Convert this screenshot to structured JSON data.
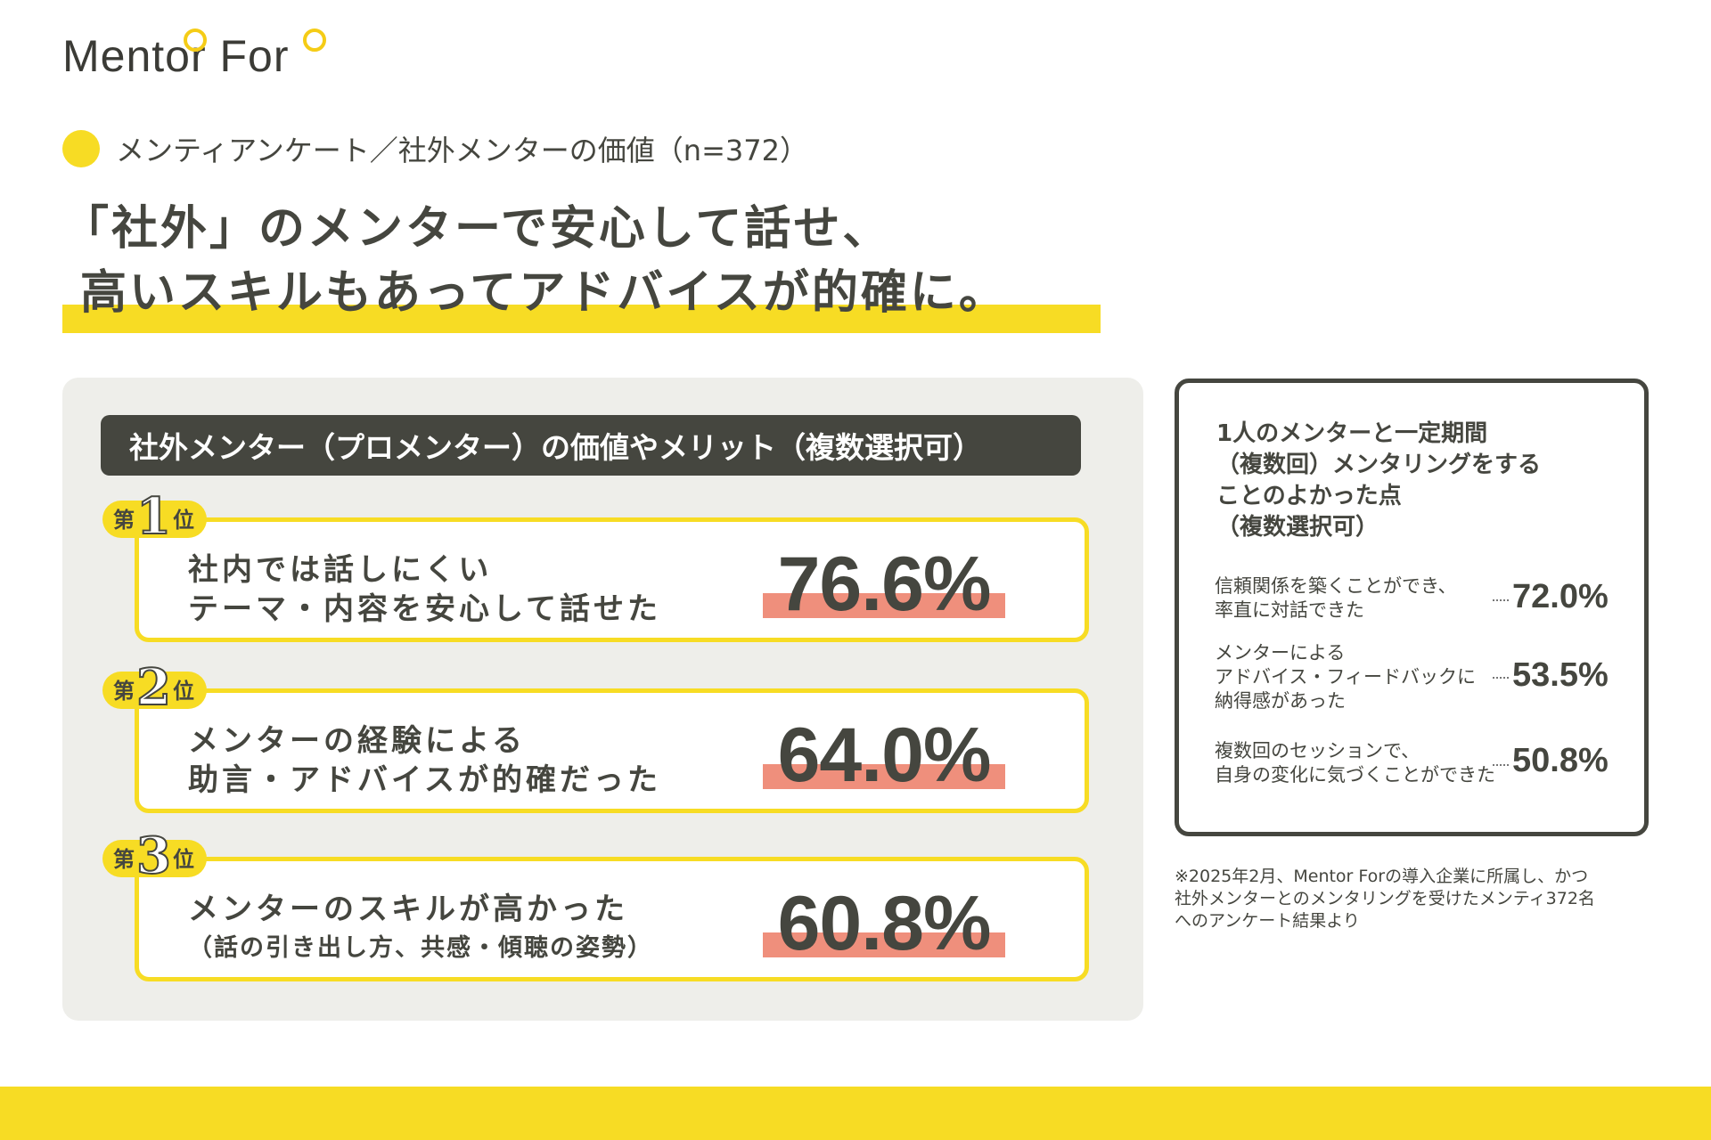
{
  "logo": "Mentor For",
  "subtitle": "メンティアンケート／社外メンターの価値（n=372）",
  "headline": {
    "line1": "「社外」のメンターで安心して話せ、",
    "line2": "高いスキルもあってアドバイスが的確に。"
  },
  "panel": {
    "title": "社外メンター（プロメンター）の価値やメリット（複数選択可）",
    "rank_prefix": "第",
    "rank_suffix": "位",
    "ranks": [
      {
        "rank": "1",
        "line1": "社内では話しにくい",
        "line2": "テーマ・内容を安心して話せた",
        "value": "76.6%"
      },
      {
        "rank": "2",
        "line1": "メンターの経験による",
        "line2": "助言・アドバイスが的確だった",
        "value": "64.0%"
      },
      {
        "rank": "3",
        "line1": "メンターのスキルが高かった",
        "line2": "（話の引き出し方、共感・傾聴の姿勢）",
        "value": "60.8%"
      }
    ]
  },
  "side": {
    "title_lines": [
      "1人のメンターと一定期間",
      "（複数回）メンタリングをする",
      "ことのよかった点",
      "（複数選択可）"
    ],
    "items": [
      {
        "lines": [
          "信頼関係を築くことができ、",
          "率直に対話できた"
        ],
        "value": "72.0%"
      },
      {
        "lines": [
          "メンターによる",
          "アドバイス・フィードバックに",
          "納得感があった"
        ],
        "value": "53.5%"
      },
      {
        "lines": [
          "複数回のセッションで、",
          "自身の変化に気づくことができた"
        ],
        "value": "50.8%"
      }
    ]
  },
  "note": [
    "※2025年2月、Mentor Forの導入企業に所属し、かつ",
    "社外メンターとのメンタリングを受けたメンティ372名",
    "へのアンケート結果より"
  ],
  "colors": {
    "yellow": "#f7dc24",
    "dark": "#45463f",
    "salmon": "#ef8f7c",
    "panel_bg": "#eeeeea"
  }
}
